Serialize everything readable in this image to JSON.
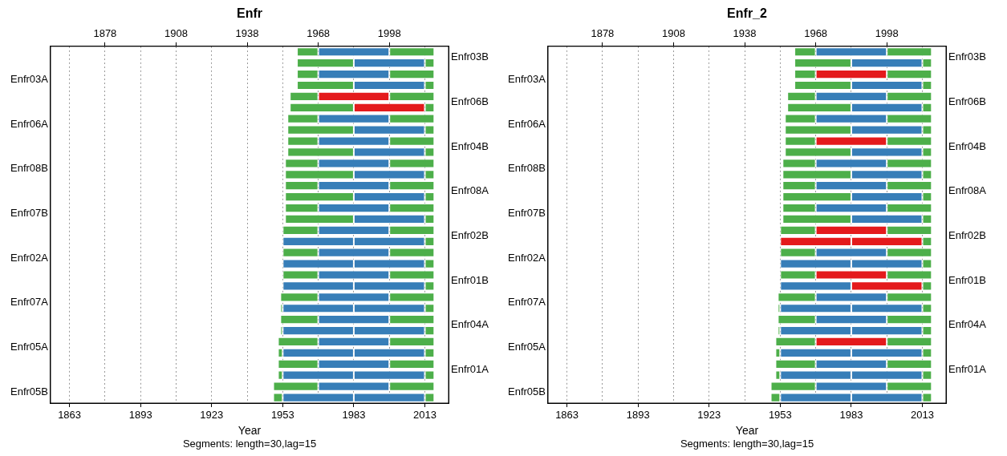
{
  "chart_data": [
    {
      "type": "bar",
      "orientation": "horizontal",
      "title": "Enfr",
      "xlabel": "Year",
      "annotations": [
        "Segments: length=30,lag=15"
      ],
      "categories": [
        "Enfr03B",
        null,
        "Enfr03A",
        null,
        "Enfr06B",
        null,
        "Enfr06A",
        null,
        "Enfr04B",
        null,
        "Enfr08B",
        null,
        "Enfr08A",
        null,
        "Enfr07B",
        null,
        "Enfr02B",
        null,
        "Enfr02A",
        null,
        "Enfr01B",
        null,
        "Enfr07A",
        null,
        "Enfr04A",
        null,
        "Enfr05A",
        null,
        "Enfr01A",
        null,
        "Enfr05B",
        null
      ],
      "xlim": [
        1855,
        2023
      ],
      "xticks": [
        1863,
        1893,
        1923,
        1953,
        1983,
        2013
      ],
      "x2lim": [
        1855,
        2023
      ],
      "x2ticks": [
        1878,
        1908,
        1938,
        1968,
        1998
      ],
      "grid": "x",
      "series": [
        {
          "base": [
            1959,
            null,
            1959,
            null,
            1956,
            null,
            1955,
            null,
            1955,
            null,
            1954,
            null,
            1954,
            null,
            1954,
            null,
            1953,
            null,
            1953,
            null,
            1953,
            null,
            1952,
            1952,
            1952,
            1952,
            1951,
            1951,
            1951,
            1951,
            1949,
            1949
          ],
          "values": [
            9,
            null,
            9,
            null,
            12,
            null,
            13,
            null,
            13,
            null,
            14,
            null,
            14,
            null,
            14,
            null,
            15,
            null,
            15,
            null,
            15,
            null,
            16,
            1,
            16,
            1,
            17,
            2,
            17,
            2,
            19,
            4
          ],
          "colors": [
            "#4daf4a",
            "#4daf4a",
            "#4daf4a",
            "#4daf4a",
            "#4daf4a",
            "#4daf4a",
            "#4daf4a",
            "#4daf4a",
            "#4daf4a",
            "#4daf4a",
            "#4daf4a",
            "#4daf4a",
            "#4daf4a",
            "#4daf4a",
            "#4daf4a",
            "#4daf4a",
            "#4daf4a",
            "#4daf4a",
            "#4daf4a",
            "#4daf4a",
            "#4daf4a",
            "#4daf4a",
            "#4daf4a",
            "#4daf4a",
            "#4daf4a",
            "#4daf4a",
            "#4daf4a",
            "#4daf4a",
            "#4daf4a",
            "#4daf4a",
            "#4daf4a",
            "#4daf4a"
          ]
        },
        {
          "base": [
            1968,
            1959,
            1968,
            1959,
            1968,
            1956,
            1968,
            1955,
            1968,
            1955,
            1968,
            1954,
            1968,
            1954,
            1968,
            1954,
            1968,
            1953,
            1968,
            1953,
            1968,
            1953,
            1968,
            1953,
            1968,
            1953,
            1968,
            1953,
            1968,
            1953,
            1968,
            1953
          ],
          "values": [
            30,
            24,
            30,
            24,
            30,
            27,
            30,
            28,
            30,
            28,
            30,
            29,
            30,
            29,
            30,
            29,
            30,
            30,
            30,
            30,
            30,
            30,
            30,
            30,
            30,
            30,
            30,
            30,
            30,
            30,
            30,
            30
          ],
          "colors": [
            "#377eb8",
            "#4daf4a",
            "#377eb8",
            "#4daf4a",
            "#e41a1c",
            "#4daf4a",
            "#377eb8",
            "#4daf4a",
            "#377eb8",
            "#4daf4a",
            "#377eb8",
            "#4daf4a",
            "#377eb8",
            "#4daf4a",
            "#377eb8",
            "#4daf4a",
            "#377eb8",
            "#377eb8",
            "#377eb8",
            "#377eb8",
            "#377eb8",
            "#377eb8",
            "#377eb8",
            "#377eb8",
            "#377eb8",
            "#377eb8",
            "#377eb8",
            "#377eb8",
            "#377eb8",
            "#377eb8",
            "#377eb8",
            "#377eb8"
          ]
        },
        {
          "base": [
            1998,
            1983,
            1998,
            1983,
            1998,
            1983,
            1998,
            1983,
            1998,
            1983,
            1998,
            1983,
            1998,
            1983,
            1998,
            1983,
            1998,
            1983,
            1998,
            1983,
            1998,
            1983,
            1998,
            1983,
            1998,
            1983,
            1998,
            1983,
            1998,
            1983,
            1998,
            1983
          ],
          "values": [
            19,
            30,
            19,
            30,
            19,
            30,
            19,
            30,
            19,
            30,
            19,
            30,
            19,
            30,
            19,
            30,
            19,
            30,
            19,
            30,
            19,
            30,
            19,
            30,
            19,
            30,
            19,
            30,
            19,
            30,
            19,
            30
          ],
          "colors": [
            "#4daf4a",
            "#377eb8",
            "#4daf4a",
            "#377eb8",
            "#4daf4a",
            "#e41a1c",
            "#4daf4a",
            "#377eb8",
            "#4daf4a",
            "#377eb8",
            "#4daf4a",
            "#377eb8",
            "#4daf4a",
            "#377eb8",
            "#4daf4a",
            "#377eb8",
            "#4daf4a",
            "#377eb8",
            "#4daf4a",
            "#377eb8",
            "#4daf4a",
            "#377eb8",
            "#4daf4a",
            "#377eb8",
            "#4daf4a",
            "#377eb8",
            "#4daf4a",
            "#377eb8",
            "#4daf4a",
            "#377eb8",
            "#4daf4a",
            "#377eb8"
          ]
        },
        {
          "base": [
            null,
            2013,
            null,
            2013,
            null,
            2013,
            null,
            2013,
            null,
            2013,
            null,
            2013,
            null,
            2013,
            null,
            2013,
            null,
            2013,
            null,
            2013,
            null,
            2013,
            null,
            2013,
            null,
            2013,
            null,
            2013,
            null,
            2013,
            null,
            2013
          ],
          "values": [
            null,
            4,
            null,
            4,
            null,
            4,
            null,
            4,
            null,
            4,
            null,
            4,
            null,
            4,
            null,
            4,
            null,
            4,
            null,
            4,
            null,
            4,
            null,
            4,
            null,
            4,
            null,
            4,
            null,
            4,
            null,
            4
          ],
          "colors": [
            "#4daf4a",
            "#4daf4a",
            "#4daf4a",
            "#4daf4a",
            "#4daf4a",
            "#4daf4a",
            "#4daf4a",
            "#4daf4a",
            "#4daf4a",
            "#4daf4a",
            "#4daf4a",
            "#4daf4a",
            "#4daf4a",
            "#4daf4a",
            "#4daf4a",
            "#4daf4a",
            "#4daf4a",
            "#4daf4a",
            "#4daf4a",
            "#4daf4a",
            "#4daf4a",
            "#4daf4a",
            "#4daf4a",
            "#4daf4a",
            "#4daf4a",
            "#4daf4a",
            "#4daf4a",
            "#4daf4a",
            "#4daf4a",
            "#4daf4a",
            "#4daf4a",
            "#4daf4a"
          ]
        }
      ]
    },
    {
      "type": "bar",
      "orientation": "horizontal",
      "title": "Enfr_2",
      "xlabel": "Year",
      "annotations": [
        "Segments: length=30,lag=15"
      ],
      "categories": [
        "Enfr03B",
        null,
        "Enfr03A",
        null,
        "Enfr06B",
        null,
        "Enfr06A",
        null,
        "Enfr04B",
        null,
        "Enfr08B",
        null,
        "Enfr08A",
        null,
        "Enfr07B",
        null,
        "Enfr02B",
        null,
        "Enfr02A",
        null,
        "Enfr01B",
        null,
        "Enfr07A",
        null,
        "Enfr04A",
        null,
        "Enfr05A",
        null,
        "Enfr01A",
        null,
        "Enfr05B",
        null
      ],
      "xlim": [
        1855,
        2023
      ],
      "xticks": [
        1863,
        1893,
        1923,
        1953,
        1983,
        2013
      ],
      "x2lim": [
        1855,
        2023
      ],
      "x2ticks": [
        1878,
        1908,
        1938,
        1968,
        1998
      ],
      "grid": "x",
      "series": [
        {
          "base": [
            1959,
            null,
            1959,
            null,
            1956,
            null,
            1955,
            null,
            1955,
            null,
            1954,
            null,
            1954,
            null,
            1954,
            null,
            1953,
            null,
            1953,
            null,
            1953,
            null,
            1952,
            1952,
            1952,
            1952,
            1951,
            1951,
            1951,
            1951,
            1949,
            1949
          ],
          "values": [
            9,
            null,
            9,
            null,
            12,
            null,
            13,
            null,
            13,
            null,
            14,
            null,
            14,
            null,
            14,
            null,
            15,
            null,
            15,
            null,
            15,
            null,
            16,
            1,
            16,
            1,
            17,
            2,
            17,
            2,
            19,
            4
          ],
          "colors": [
            "#4daf4a",
            "#4daf4a",
            "#4daf4a",
            "#4daf4a",
            "#4daf4a",
            "#4daf4a",
            "#4daf4a",
            "#4daf4a",
            "#4daf4a",
            "#4daf4a",
            "#4daf4a",
            "#4daf4a",
            "#4daf4a",
            "#4daf4a",
            "#4daf4a",
            "#4daf4a",
            "#4daf4a",
            "#4daf4a",
            "#4daf4a",
            "#4daf4a",
            "#4daf4a",
            "#4daf4a",
            "#4daf4a",
            "#4daf4a",
            "#4daf4a",
            "#4daf4a",
            "#4daf4a",
            "#4daf4a",
            "#4daf4a",
            "#4daf4a",
            "#4daf4a",
            "#4daf4a"
          ]
        },
        {
          "base": [
            1968,
            1959,
            1968,
            1959,
            1968,
            1956,
            1968,
            1955,
            1968,
            1955,
            1968,
            1954,
            1968,
            1954,
            1968,
            1954,
            1968,
            1953,
            1968,
            1953,
            1968,
            1953,
            1968,
            1953,
            1968,
            1953,
            1968,
            1953,
            1968,
            1953,
            1968,
            1953
          ],
          "values": [
            30,
            24,
            30,
            24,
            30,
            27,
            30,
            28,
            30,
            28,
            30,
            29,
            30,
            29,
            30,
            29,
            30,
            30,
            30,
            30,
            30,
            30,
            30,
            30,
            30,
            30,
            30,
            30,
            30,
            30,
            30,
            30
          ],
          "colors": [
            "#377eb8",
            "#4daf4a",
            "#e41a1c",
            "#4daf4a",
            "#377eb8",
            "#4daf4a",
            "#377eb8",
            "#4daf4a",
            "#e41a1c",
            "#4daf4a",
            "#377eb8",
            "#4daf4a",
            "#377eb8",
            "#4daf4a",
            "#377eb8",
            "#4daf4a",
            "#e41a1c",
            "#e41a1c",
            "#377eb8",
            "#377eb8",
            "#e41a1c",
            "#377eb8",
            "#377eb8",
            "#377eb8",
            "#377eb8",
            "#377eb8",
            "#e41a1c",
            "#377eb8",
            "#377eb8",
            "#377eb8",
            "#377eb8",
            "#377eb8"
          ]
        },
        {
          "base": [
            1998,
            1983,
            1998,
            1983,
            1998,
            1983,
            1998,
            1983,
            1998,
            1983,
            1998,
            1983,
            1998,
            1983,
            1998,
            1983,
            1998,
            1983,
            1998,
            1983,
            1998,
            1983,
            1998,
            1983,
            1998,
            1983,
            1998,
            1983,
            1998,
            1983,
            1998,
            1983
          ],
          "values": [
            19,
            30,
            19,
            30,
            19,
            30,
            19,
            30,
            19,
            30,
            19,
            30,
            19,
            30,
            19,
            30,
            19,
            30,
            19,
            30,
            19,
            30,
            19,
            30,
            19,
            30,
            19,
            30,
            19,
            30,
            19,
            30
          ],
          "colors": [
            "#4daf4a",
            "#377eb8",
            "#4daf4a",
            "#377eb8",
            "#4daf4a",
            "#377eb8",
            "#4daf4a",
            "#377eb8",
            "#4daf4a",
            "#377eb8",
            "#4daf4a",
            "#377eb8",
            "#4daf4a",
            "#377eb8",
            "#4daf4a",
            "#377eb8",
            "#4daf4a",
            "#e41a1c",
            "#4daf4a",
            "#377eb8",
            "#4daf4a",
            "#e41a1c",
            "#4daf4a",
            "#377eb8",
            "#4daf4a",
            "#377eb8",
            "#4daf4a",
            "#377eb8",
            "#4daf4a",
            "#377eb8",
            "#4daf4a",
            "#377eb8"
          ]
        },
        {
          "base": [
            null,
            2013,
            null,
            2013,
            null,
            2013,
            null,
            2013,
            null,
            2013,
            null,
            2013,
            null,
            2013,
            null,
            2013,
            null,
            2013,
            null,
            2013,
            null,
            2013,
            null,
            2013,
            null,
            2013,
            null,
            2013,
            null,
            2013,
            null,
            2013
          ],
          "values": [
            null,
            4,
            null,
            4,
            null,
            4,
            null,
            4,
            null,
            4,
            null,
            4,
            null,
            4,
            null,
            4,
            null,
            4,
            null,
            4,
            null,
            4,
            null,
            4,
            null,
            4,
            null,
            4,
            null,
            4,
            null,
            4
          ],
          "colors": [
            "#4daf4a",
            "#4daf4a",
            "#4daf4a",
            "#4daf4a",
            "#4daf4a",
            "#4daf4a",
            "#4daf4a",
            "#4daf4a",
            "#4daf4a",
            "#4daf4a",
            "#4daf4a",
            "#4daf4a",
            "#4daf4a",
            "#4daf4a",
            "#4daf4a",
            "#4daf4a",
            "#4daf4a",
            "#4daf4a",
            "#4daf4a",
            "#4daf4a",
            "#4daf4a",
            "#4daf4a",
            "#4daf4a",
            "#4daf4a",
            "#4daf4a",
            "#4daf4a",
            "#4daf4a",
            "#4daf4a",
            "#4daf4a",
            "#4daf4a",
            "#4daf4a",
            "#4daf4a"
          ]
        }
      ]
    }
  ]
}
